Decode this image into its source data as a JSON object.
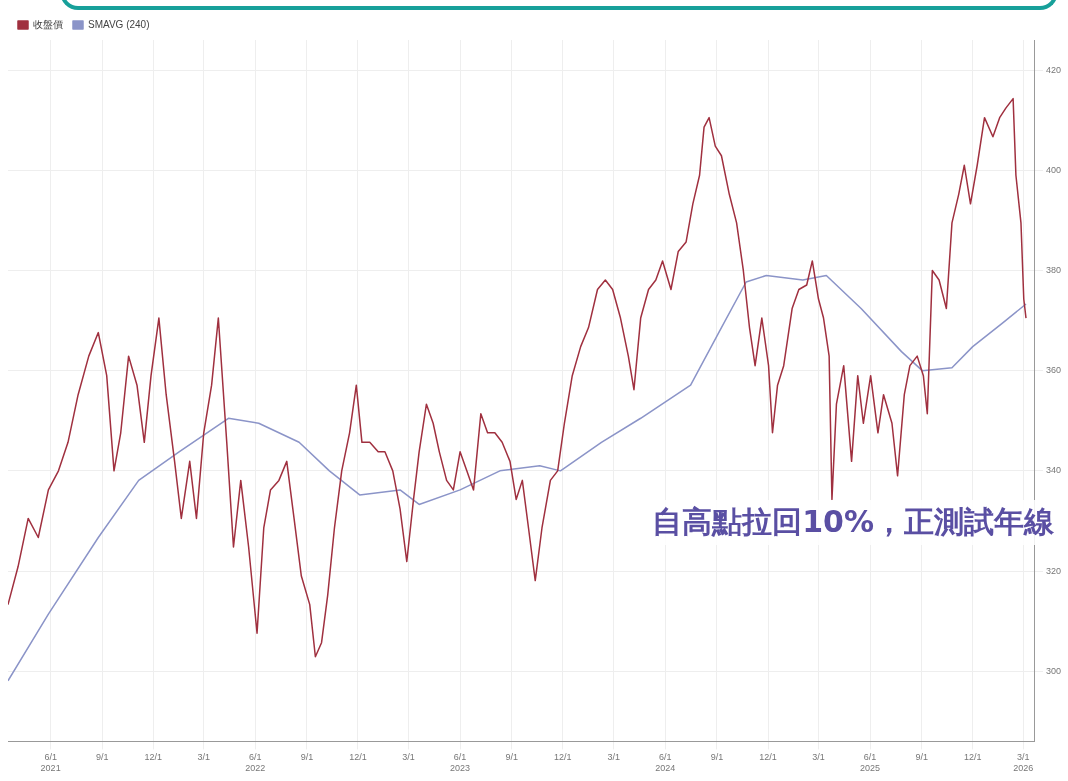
{
  "chart_data": {
    "type": "line",
    "annotations": [
      "自高點拉回10%，正測試年線"
    ],
    "legend": "top left",
    "grid": true,
    "marker": "none",
    "line_style": "solid",
    "xlim": [
      "2021-03-17",
      "2026-03-22"
    ],
    "ylim": [
      286,
      426
    ],
    "xticks": [
      {
        "value": "2021-06-01",
        "label": "6/1\n2021"
      },
      {
        "value": "2021-09-01",
        "label": "9/1"
      },
      {
        "value": "2021-12-01",
        "label": "12/1"
      },
      {
        "value": "2022-03-01",
        "label": "3/1"
      },
      {
        "value": "2022-06-01",
        "label": "6/1\n2022"
      },
      {
        "value": "2022-09-01",
        "label": "9/1"
      },
      {
        "value": "2022-12-01",
        "label": "12/1"
      },
      {
        "value": "2023-03-01",
        "label": "3/1"
      },
      {
        "value": "2023-06-01",
        "label": "6/1\n2023"
      },
      {
        "value": "2023-09-01",
        "label": "9/1"
      },
      {
        "value": "2023-12-01",
        "label": "12/1"
      },
      {
        "value": "2024-03-01",
        "label": "3/1"
      },
      {
        "value": "2024-06-01",
        "label": "6/1\n2024"
      },
      {
        "value": "2024-09-01",
        "label": "9/1"
      },
      {
        "value": "2024-12-01",
        "label": "12/1"
      },
      {
        "value": "2025-03-01",
        "label": "3/1"
      },
      {
        "value": "2025-06-01",
        "label": "6/1\n2025"
      },
      {
        "value": "2025-09-01",
        "label": "9/1"
      },
      {
        "value": "2025-12-01",
        "label": "12/1"
      },
      {
        "value": "2026-03-01",
        "label": "3/1\n2026"
      }
    ],
    "yticks": [
      300,
      320,
      340,
      360,
      380,
      400,
      420
    ],
    "series": [
      {
        "name": "收盤價",
        "color": "#a0303f",
        "x": [
          "2021-03-17",
          "2021-04-04",
          "2021-04-22",
          "2021-05-10",
          "2021-05-28",
          "2021-06-15",
          "2021-07-02",
          "2021-07-20",
          "2021-08-08",
          "2021-08-25",
          "2021-09-09",
          "2021-09-22",
          "2021-10-04",
          "2021-10-18",
          "2021-11-02",
          "2021-11-15",
          "2021-11-27",
          "2021-12-11",
          "2021-12-24",
          "2022-01-08",
          "2022-01-20",
          "2022-02-04",
          "2022-02-16",
          "2022-03-01",
          "2022-03-15",
          "2022-03-27",
          "2022-04-11",
          "2022-04-23",
          "2022-05-06",
          "2022-05-20",
          "2022-06-04",
          "2022-06-16",
          "2022-06-28",
          "2022-07-13",
          "2022-07-27",
          "2022-08-09",
          "2022-08-22",
          "2022-09-06",
          "2022-09-16",
          "2022-09-27",
          "2022-10-08",
          "2022-10-20",
          "2022-11-02",
          "2022-11-16",
          "2022-11-28",
          "2022-12-08",
          "2022-12-22",
          "2023-01-06",
          "2023-01-18",
          "2023-02-01",
          "2023-02-14",
          "2023-02-26",
          "2023-03-10",
          "2023-03-20",
          "2023-04-02",
          "2023-04-14",
          "2023-04-25",
          "2023-05-08",
          "2023-05-20",
          "2023-06-01",
          "2023-06-13",
          "2023-06-25",
          "2023-07-08",
          "2023-07-20",
          "2023-08-02",
          "2023-08-15",
          "2023-08-29",
          "2023-09-09",
          "2023-09-20",
          "2023-10-01",
          "2023-10-13",
          "2023-10-25",
          "2023-11-09",
          "2023-11-22",
          "2023-12-04",
          "2023-12-18",
          "2024-01-02",
          "2024-01-16",
          "2024-02-01",
          "2024-02-15",
          "2024-02-28",
          "2024-03-13",
          "2024-03-27",
          "2024-04-06",
          "2024-04-18",
          "2024-05-02",
          "2024-05-15",
          "2024-05-27",
          "2024-06-11",
          "2024-06-24",
          "2024-07-08",
          "2024-07-20",
          "2024-08-01",
          "2024-08-09",
          "2024-08-18",
          "2024-08-29",
          "2024-09-09",
          "2024-09-23",
          "2024-10-06",
          "2024-10-18",
          "2024-10-29",
          "2024-11-08",
          "2024-11-20",
          "2024-12-02",
          "2024-12-09",
          "2024-12-18",
          "2024-12-29",
          "2025-01-13",
          "2025-01-25",
          "2025-02-08",
          "2025-02-18",
          "2025-03-01",
          "2025-03-10",
          "2025-03-20",
          "2025-03-25",
          "2025-04-02",
          "2025-04-15",
          "2025-04-29",
          "2025-05-10",
          "2025-05-20",
          "2025-06-02",
          "2025-06-15",
          "2025-06-25",
          "2025-07-10",
          "2025-07-20",
          "2025-08-01",
          "2025-08-11",
          "2025-08-24",
          "2025-09-04",
          "2025-09-11",
          "2025-09-20",
          "2025-10-02",
          "2025-10-15",
          "2025-10-25",
          "2025-11-06",
          "2025-11-16",
          "2025-11-27",
          "2025-12-09",
          "2025-12-22",
          "2026-01-06",
          "2026-01-18",
          "2026-01-29",
          "2026-02-11",
          "2026-02-16",
          "2026-02-25",
          "2026-03-02",
          "2026-03-06"
        ],
        "values": [
          313.3,
          320.9,
          330.5,
          326.7,
          336.2,
          340,
          345.7,
          355.2,
          362.9,
          367.6,
          359,
          340,
          347.6,
          362.9,
          357.1,
          345.7,
          359,
          370.5,
          355.2,
          341.9,
          330.5,
          341.9,
          330.5,
          347.6,
          357.1,
          370.5,
          345.7,
          324.8,
          338.1,
          324.8,
          307.6,
          328.6,
          336.2,
          338.1,
          341.9,
          330.5,
          319,
          313.3,
          302.9,
          305.7,
          315.2,
          328.6,
          340,
          347.6,
          357.1,
          345.7,
          345.7,
          343.8,
          343.8,
          340,
          332.4,
          321.9,
          334.3,
          343.8,
          353.3,
          349.5,
          343.8,
          338.1,
          336.2,
          343.8,
          340,
          336.2,
          351.4,
          347.6,
          347.6,
          345.7,
          341.9,
          334.3,
          338.1,
          328.6,
          318.1,
          328.6,
          338.1,
          340,
          349.5,
          359,
          364.8,
          368.6,
          376.2,
          378.1,
          376.2,
          370.5,
          362.9,
          356.2,
          370.5,
          376.2,
          378.1,
          381.9,
          376.2,
          383.8,
          385.7,
          393.3,
          399,
          408.6,
          410.5,
          404.8,
          402.9,
          395.2,
          389.5,
          380,
          368.6,
          361,
          370.5,
          361,
          347.6,
          357.1,
          361,
          372.4,
          376.2,
          377.1,
          381.9,
          374.3,
          370.5,
          362.9,
          334.3,
          353.3,
          361,
          341.9,
          359,
          349.5,
          359,
          347.6,
          355.2,
          349.5,
          339,
          355.2,
          361,
          362.9,
          359,
          351.4,
          380,
          378.1,
          372.4,
          389.5,
          395.2,
          401,
          393.3,
          401,
          410.5,
          406.7,
          410.5,
          412.4,
          414.3,
          399,
          389.5,
          374.3,
          370.5
        ]
      },
      {
        "name": "SMAVG (240)",
        "color": "#8b94c8",
        "x": [
          "2021-03-17",
          "2021-05-28",
          "2021-08-25",
          "2021-11-05",
          "2022-01-16",
          "2022-04-14",
          "2022-06-07",
          "2022-08-18",
          "2022-10-11",
          "2022-12-04",
          "2023-02-14",
          "2023-03-20",
          "2023-06-01",
          "2023-08-11",
          "2023-10-21",
          "2023-11-27",
          "2024-02-08",
          "2024-04-18",
          "2024-07-16",
          "2024-09-09",
          "2024-10-23",
          "2024-11-28",
          "2025-02-01",
          "2025-03-15",
          "2025-05-16",
          "2025-07-27",
          "2025-09-02",
          "2025-10-25",
          "2025-12-01",
          "2026-01-23",
          "2026-03-06"
        ],
        "values": [
          298.1,
          311.4,
          326.7,
          338.1,
          343.8,
          350.5,
          349.5,
          345.7,
          340,
          335.2,
          336.2,
          333.3,
          336.2,
          340,
          341,
          340,
          345.7,
          350.5,
          357.1,
          368.6,
          377.7,
          379,
          378.1,
          379,
          372.4,
          363.8,
          360,
          360.6,
          364.8,
          369.5,
          373.3
        ]
      }
    ]
  }
}
